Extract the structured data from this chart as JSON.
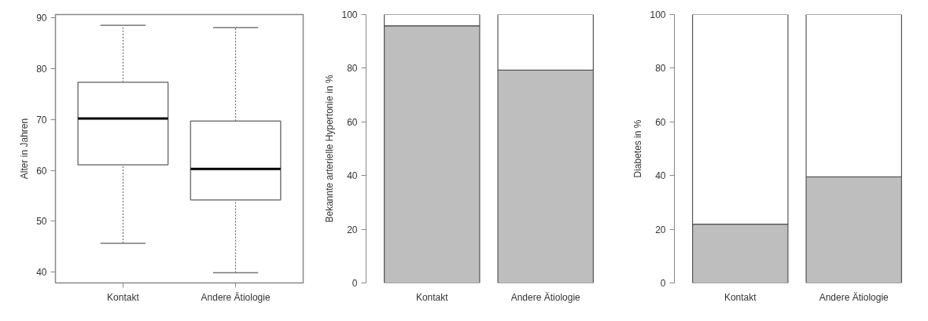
{
  "chart_data": [
    {
      "type": "box",
      "ylabel": "Alter in Jahren",
      "categories": [
        "Kontakt",
        "Andere Ätiologie"
      ],
      "boxes": [
        {
          "low": 45.7,
          "q1": 61.1,
          "median": 70.2,
          "q3": 77.3,
          "high": 88.5
        },
        {
          "low": 39.9,
          "q1": 54.2,
          "median": 60.3,
          "q3": 69.7,
          "high": 88.0
        }
      ],
      "ylim": [
        37.9,
        90.6
      ],
      "yticks": [
        40,
        50,
        60,
        70,
        80,
        90
      ],
      "grid": false
    },
    {
      "type": "bar",
      "stacked": true,
      "ylabel": "Bekannte arterielle Hypertonie in %",
      "categories": [
        "Kontakt",
        "Andere Ätiologie"
      ],
      "series": [
        {
          "color": "#bebebe",
          "values": [
            95.8,
            79.3
          ]
        },
        {
          "color": "#ffffff",
          "values": [
            4.2,
            20.7
          ]
        }
      ],
      "ylim": [
        0,
        100
      ],
      "yticks": [
        0,
        20,
        40,
        60,
        80,
        100
      ],
      "grid": false
    },
    {
      "type": "bar",
      "stacked": true,
      "ylabel": "Diabetes in %",
      "categories": [
        "Kontakt",
        "Andere Ätiologie"
      ],
      "series": [
        {
          "color": "#bebebe",
          "values": [
            21.9,
            39.5
          ]
        },
        {
          "color": "#ffffff",
          "values": [
            78.1,
            60.5
          ]
        }
      ],
      "ylim": [
        0,
        100
      ],
      "yticks": [
        0,
        20,
        40,
        60,
        80,
        100
      ],
      "grid": false
    }
  ]
}
